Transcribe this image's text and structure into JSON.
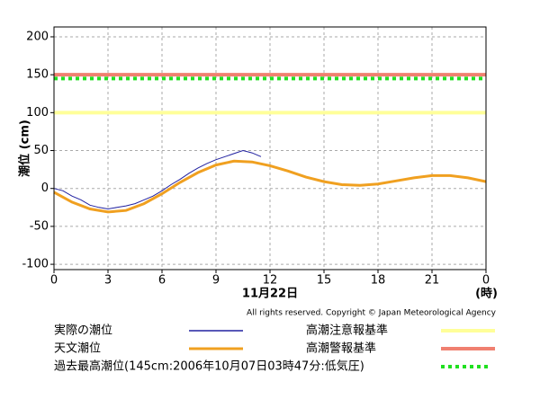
{
  "chart_data": {
    "type": "line",
    "ylabel": "潮位 (cm)",
    "xlabel": "11月22日",
    "xunit": "(時)",
    "copyright": "All rights reserved. Copyright © Japan Meteorological Agency",
    "xlim": [
      0,
      24
    ],
    "xticks": [
      0,
      3,
      6,
      9,
      12,
      15,
      18,
      21,
      {
        "value": 24,
        "label": "0"
      }
    ],
    "ylim": [
      -107,
      213
    ],
    "yticks": [
      -100,
      -50,
      0,
      50,
      100,
      150,
      200
    ],
    "grid": true,
    "series": [
      {
        "name": "実際の潮位",
        "color": "#2020a0",
        "width": 1,
        "x": [
          0,
          0.5,
          1,
          1.5,
          2,
          2.5,
          3,
          3.5,
          4,
          4.5,
          5,
          5.5,
          6,
          6.5,
          7,
          7.5,
          8,
          8.5,
          9,
          9.5,
          10,
          10.5,
          11,
          11.5
        ],
        "values": [
          0,
          -3,
          -10,
          -15,
          -22,
          -25,
          -27,
          -25,
          -23,
          -20,
          -15,
          -10,
          -3,
          5,
          12,
          20,
          27,
          33,
          38,
          42,
          46,
          50,
          47,
          42
        ]
      },
      {
        "name": "天文潮位",
        "color": "#f0a020",
        "width": 3,
        "x": [
          0,
          1,
          2,
          3,
          4,
          5,
          6,
          7,
          8,
          9,
          10,
          11,
          12,
          13,
          14,
          15,
          16,
          17,
          18,
          19,
          20,
          21,
          22,
          23,
          24
        ],
        "values": [
          -5,
          -18,
          -27,
          -31,
          -29,
          -20,
          -7,
          8,
          21,
          31,
          36,
          35,
          30,
          23,
          15,
          9,
          5,
          4,
          6,
          10,
          14,
          17,
          17,
          14,
          9
        ]
      }
    ],
    "reference_lines": [
      {
        "name": "高潮注意報基準",
        "value": 100,
        "color": "#ffff99",
        "style": "solid"
      },
      {
        "name": "高潮警報基準",
        "value": 150,
        "color": "#f08070",
        "style": "solid"
      },
      {
        "name": "過去最高潮位(145cm:2006年10月07日03時47分:低気圧)",
        "value": 145,
        "color": "#20e020",
        "style": "dashed"
      }
    ]
  }
}
